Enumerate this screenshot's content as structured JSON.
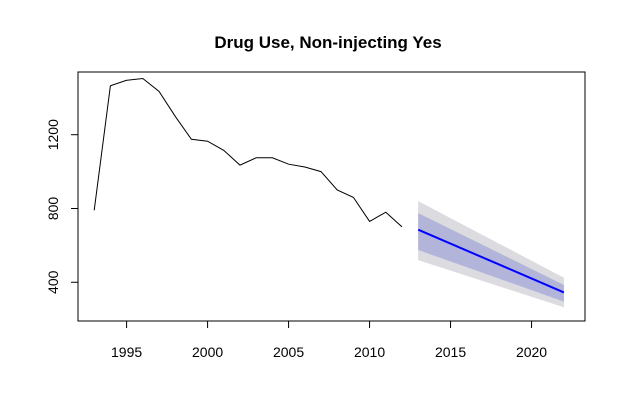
{
  "chart_data": {
    "type": "line",
    "title": "Drug Use, Non-injecting Yes",
    "xlabel": "",
    "ylabel": "",
    "xlim": [
      1992,
      2023.3
    ],
    "ylim": [
      190,
      1540
    ],
    "x_ticks": [
      1995,
      2000,
      2005,
      2010,
      2015,
      2020
    ],
    "y_ticks": [
      400,
      800,
      1200
    ],
    "grid": false,
    "legend": "none",
    "series": [
      {
        "role": "observed",
        "color": "#000000",
        "x": [
          1993,
          1994,
          1995,
          1996,
          1997,
          1998,
          1999,
          2000,
          2001,
          2002,
          2003,
          2004,
          2005,
          2006,
          2007,
          2008,
          2009,
          2010,
          2011,
          2012
        ],
        "y": [
          790,
          1465,
          1495,
          1505,
          1435,
          1300,
          1175,
          1165,
          1115,
          1035,
          1075,
          1075,
          1040,
          1025,
          1000,
          900,
          860,
          730,
          780,
          700
        ]
      }
    ],
    "forecast": {
      "color": "#0000ff",
      "band80_color": "#b2b5d9",
      "band95_color": "#dbdbe0",
      "x": [
        2013,
        2022
      ],
      "mean": [
        685,
        345
      ],
      "lower80": [
        575,
        295
      ],
      "upper80": [
        775,
        385
      ],
      "lower95": [
        520,
        265
      ],
      "upper95": [
        840,
        425
      ]
    }
  }
}
